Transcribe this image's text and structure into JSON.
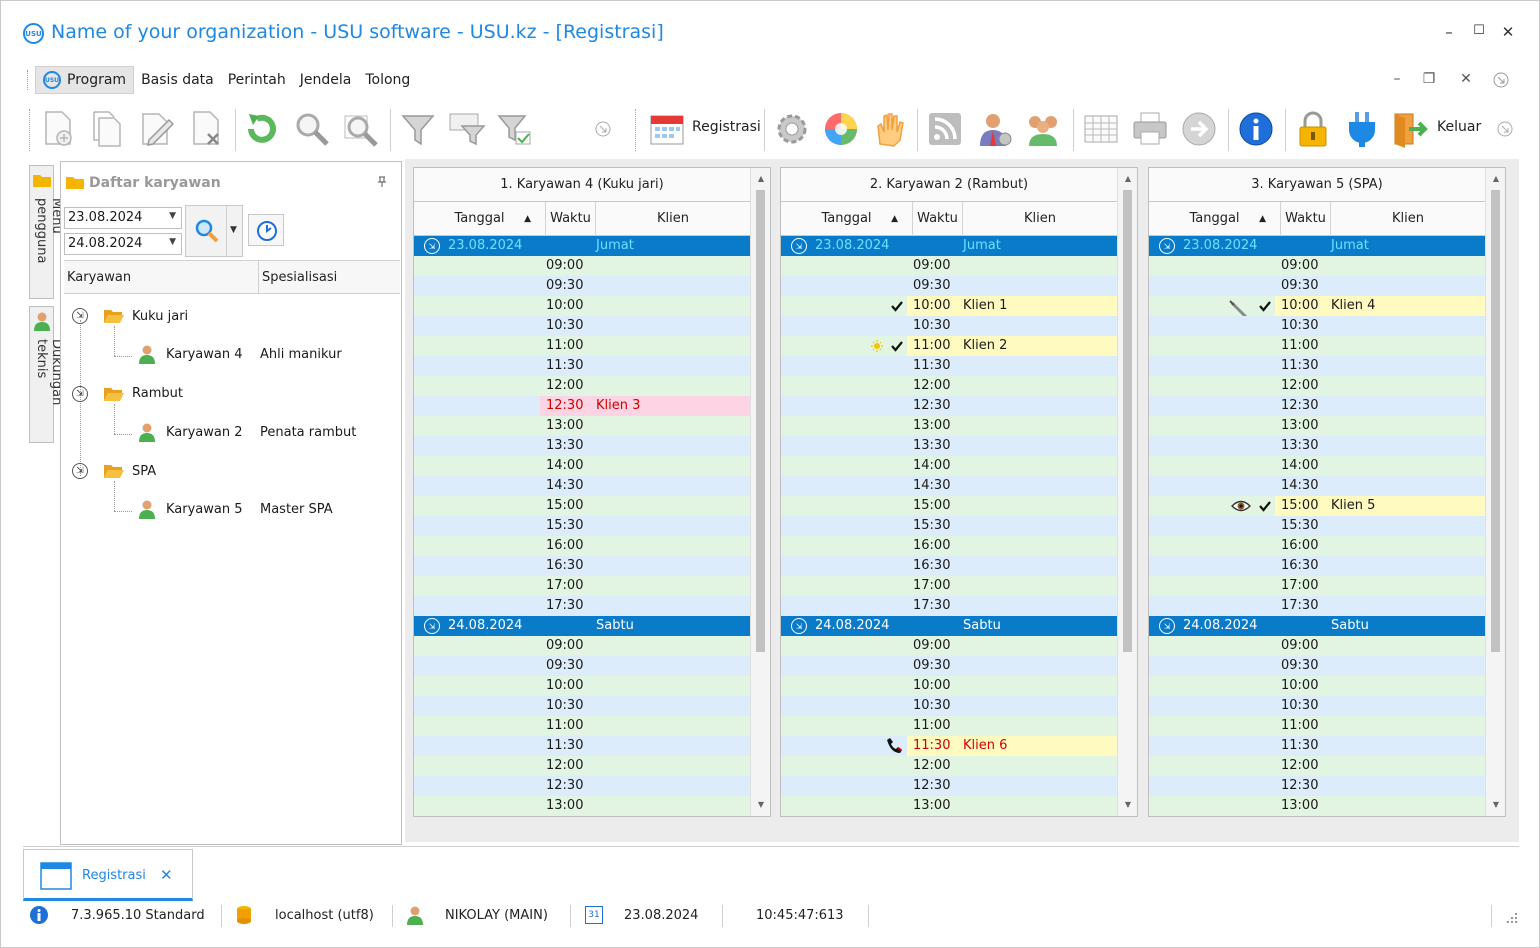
{
  "window": {
    "title": "Name of your organization - USU software - USU.kz - [Registrasi]",
    "logo_text": "USU",
    "controls": {
      "minimize": "–",
      "maximize": "☐",
      "close": "✕"
    }
  },
  "menu": {
    "items": [
      "Program",
      "Basis data",
      "Perintah",
      "Jendela",
      "Tolong"
    ],
    "mdi_controls": {
      "minimize": "–",
      "restore": "❐",
      "close": "✕"
    }
  },
  "toolbar": {
    "registrasi_label": "Registrasi",
    "keluar_label": "Keluar"
  },
  "side_tabs": {
    "menu": "Menu pengguna",
    "support": "Dukungan teknis"
  },
  "left_panel": {
    "title": "Daftar karyawan",
    "date_from": "23.08.2024",
    "date_to": "24.08.2024",
    "columns": [
      "Karyawan",
      "Spesialisasi"
    ],
    "groups": [
      {
        "name": "Kuku jari",
        "employee": "Karyawan 4",
        "specialty": "Ahli manikur"
      },
      {
        "name": "Rambut",
        "employee": "Karyawan 2",
        "specialty": "Penata rambut"
      },
      {
        "name": "SPA",
        "employee": "Karyawan 5",
        "specialty": "Master SPA"
      }
    ]
  },
  "schedule": {
    "col_date": "Tanggal",
    "col_time": "Waktu",
    "col_client": "Klien",
    "day1": {
      "date": "23.08.2024",
      "day": "Jumat"
    },
    "day2": {
      "date": "24.08.2024",
      "day": "Sabtu"
    },
    "times_day1": [
      "09:00",
      "09:30",
      "10:00",
      "10:30",
      "11:00",
      "11:30",
      "12:00",
      "12:30",
      "13:00",
      "13:30",
      "14:00",
      "14:30",
      "15:00",
      "15:30",
      "16:00",
      "16:30",
      "17:00",
      "17:30"
    ],
    "times_day2": [
      "09:00",
      "09:30",
      "10:00",
      "10:30",
      "11:00",
      "11:30",
      "12:00",
      "12:30",
      "13:00"
    ],
    "panels": [
      {
        "title": "1. Karyawan 4 (Kuku jari)",
        "bookings": [
          {
            "day": 1,
            "time": "12:30",
            "client": "Klien 3",
            "style": "pink"
          }
        ]
      },
      {
        "title": "2. Karyawan 2 (Rambut)",
        "bookings": [
          {
            "day": 1,
            "time": "10:00",
            "client": "Klien 1",
            "style": "yellow",
            "marks": [
              "check"
            ]
          },
          {
            "day": 1,
            "time": "11:00",
            "client": "Klien 2",
            "style": "yellow",
            "marks": [
              "sun",
              "check"
            ]
          },
          {
            "day": 2,
            "time": "11:30",
            "client": "Klien 6",
            "style": "yellow-red",
            "marks": [
              "phone"
            ]
          }
        ]
      },
      {
        "title": "3. Karyawan 5 (SPA)",
        "bookings": [
          {
            "day": 1,
            "time": "10:00",
            "client": "Klien 4",
            "style": "yellow",
            "marks": [
              "syringe",
              "check"
            ]
          },
          {
            "day": 1,
            "time": "15:00",
            "client": "Klien 5",
            "style": "yellow",
            "marks": [
              "eye",
              "check"
            ]
          }
        ]
      }
    ]
  },
  "doc_tab": {
    "label": "Registrasi",
    "close": "✕"
  },
  "status": {
    "version": "7.3.965.10 Standard",
    "server": "localhost (utf8)",
    "user": "NIKOLAY (MAIN)",
    "calendar_day": "31",
    "date": "23.08.2024",
    "time": "10:45:47:613"
  },
  "colors": {
    "accent": "#1e88e5",
    "date_row": "#0a7bc9",
    "row_green": "#e2f5e2",
    "row_blue": "#dcecfb",
    "booking_yellow": "#fefac0",
    "booking_pink": "#fdd4e3",
    "booking_text_red": "#d00000"
  }
}
